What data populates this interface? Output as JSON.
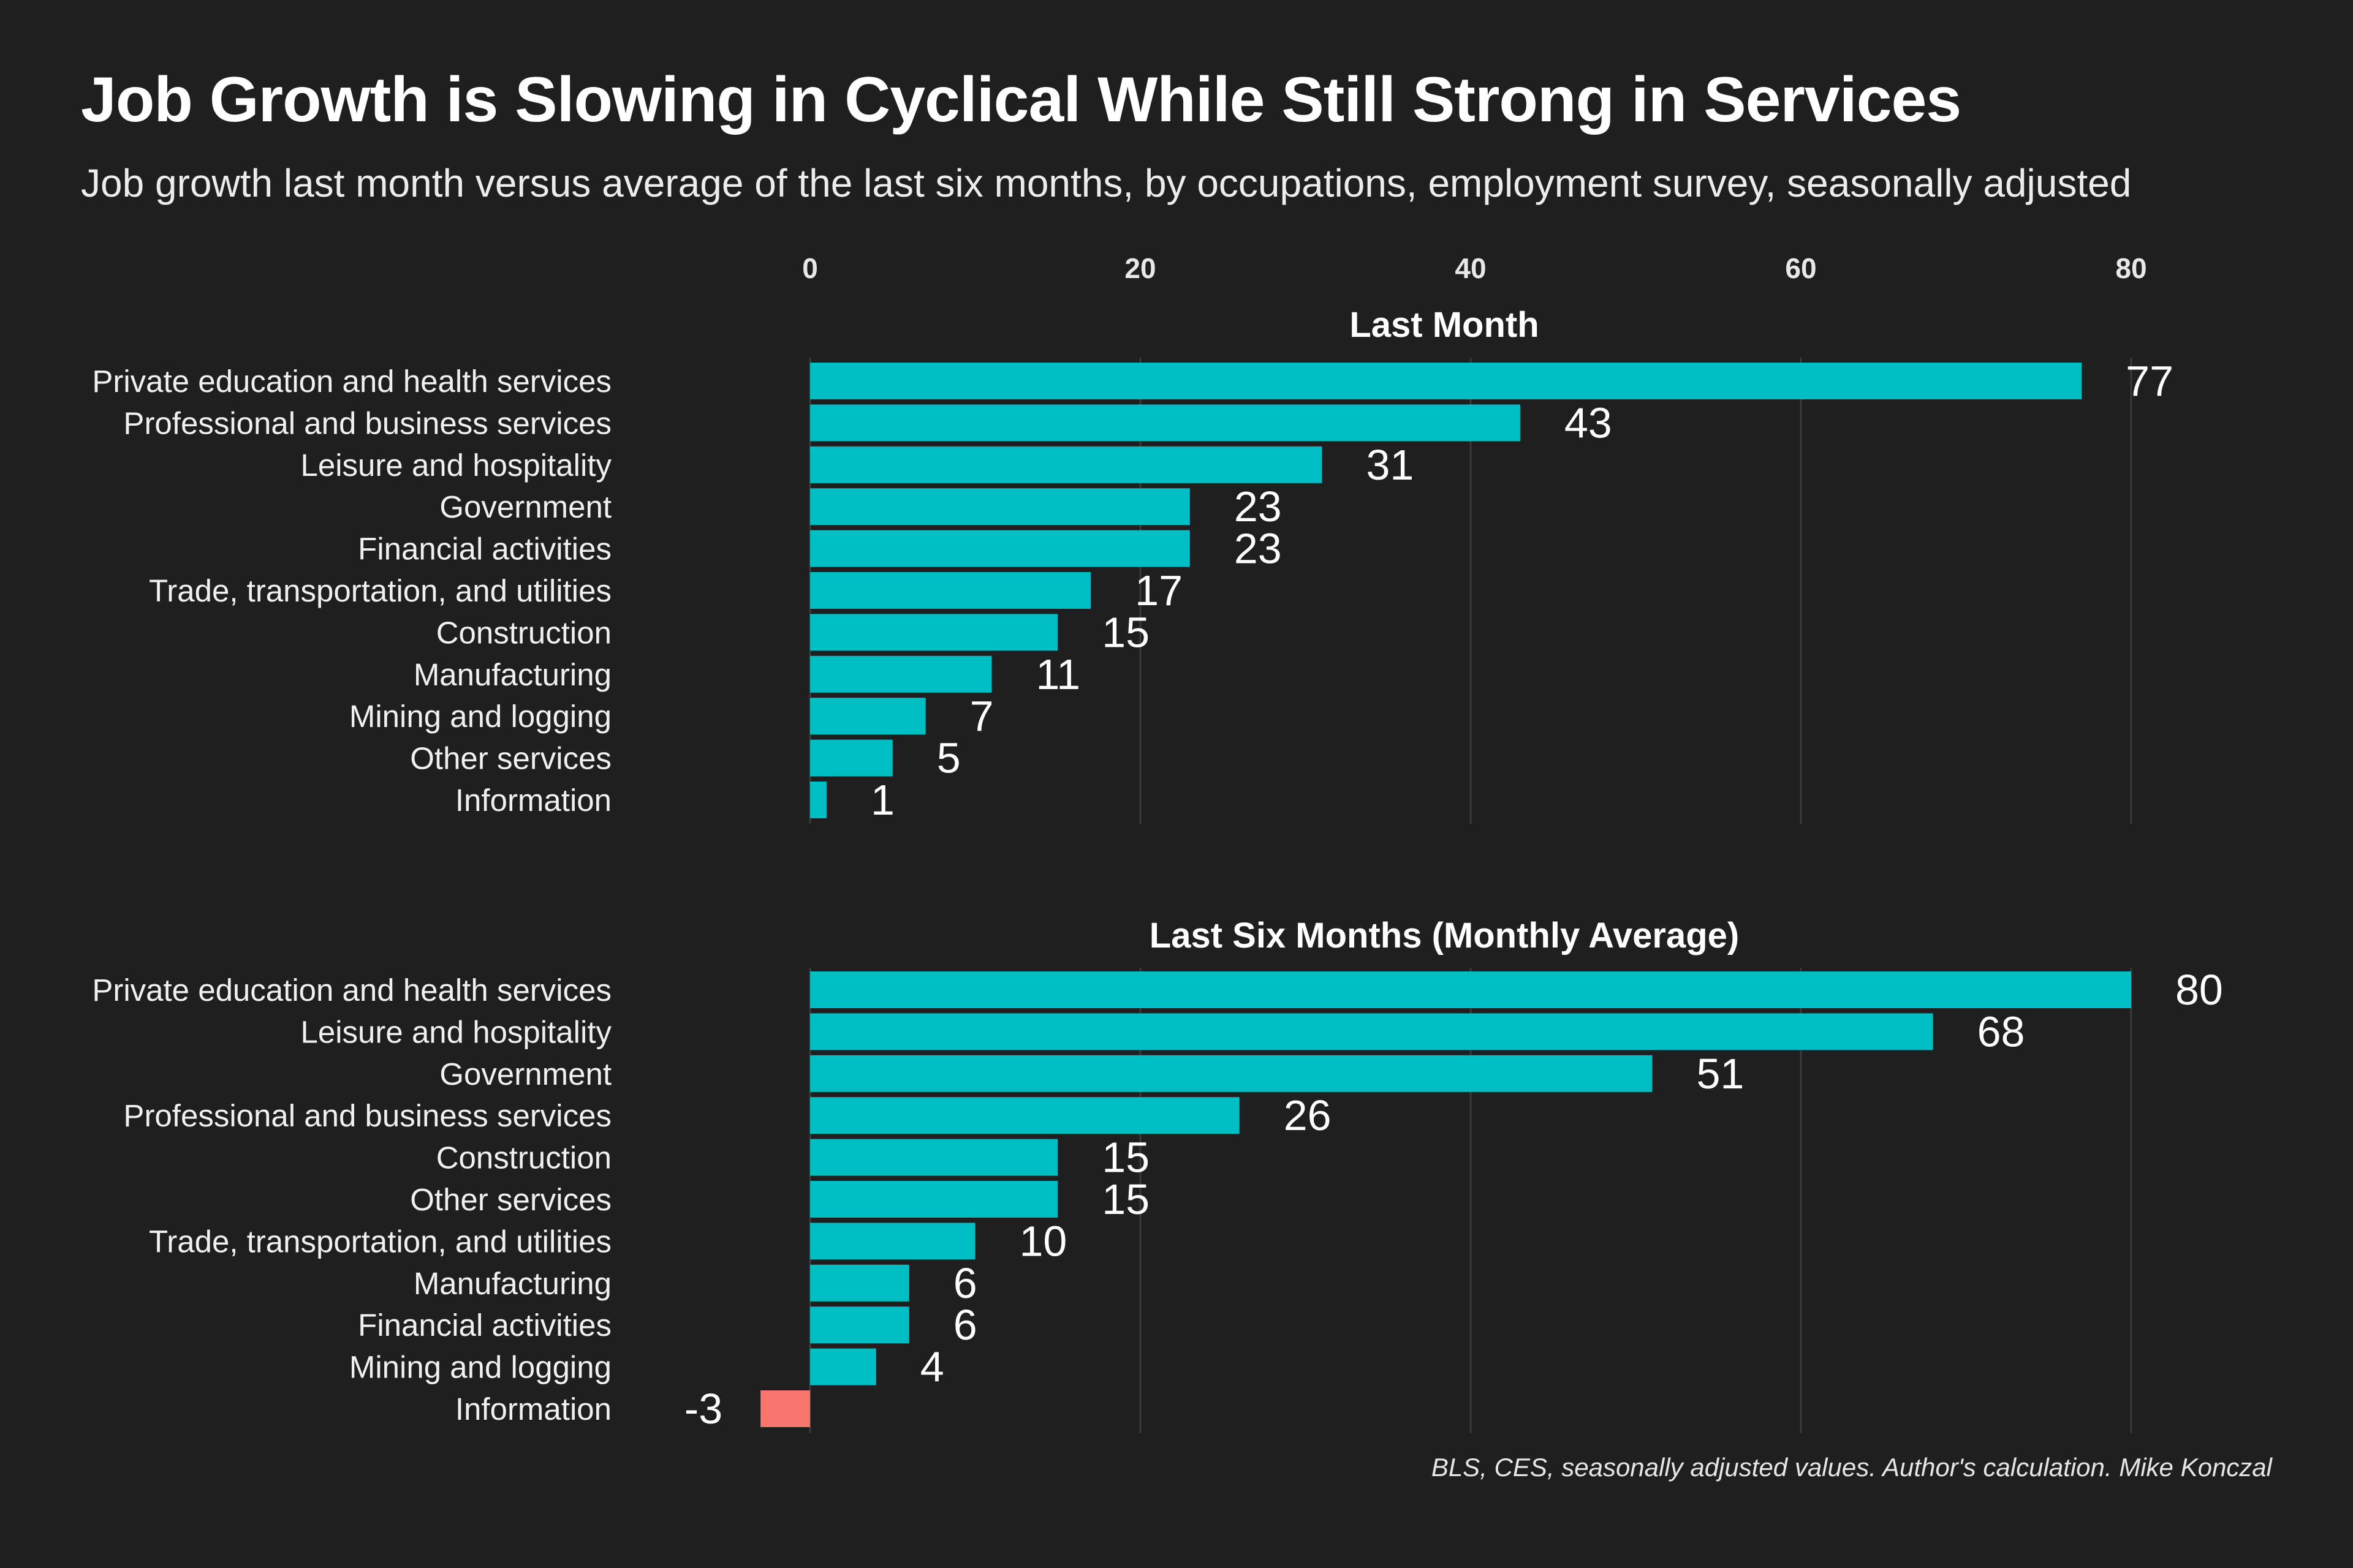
{
  "header": {
    "title": "Job Growth is Slowing in Cyclical While Still Strong in Services",
    "subtitle": "Job growth last month versus average of the last six months, by occupations, employment survey, seasonally adjusted"
  },
  "footer": {
    "source": "BLS, CES, seasonally adjusted values. Author's calculation. Mike Konczal"
  },
  "colors": {
    "background": "#1f1f1f",
    "positive": "#00bfc4",
    "negative": "#f8766d",
    "grid": "#3a3a3a",
    "text": "#ffffff"
  },
  "chart_data": {
    "type": "bar",
    "orientation": "horizontal",
    "x_ticks": [
      0,
      20,
      40,
      60,
      80
    ],
    "xlim": [
      -3.5,
      82
    ],
    "grid": true,
    "panels": [
      {
        "title": "Last Month",
        "categories": [
          "Private education and health services",
          "Professional and business services",
          "Leisure and hospitality",
          "Government",
          "Financial activities",
          "Trade, transportation, and utilities",
          "Construction",
          "Manufacturing",
          "Mining and logging",
          "Other services",
          "Information"
        ],
        "values": [
          77,
          43,
          31,
          23,
          23,
          17,
          15,
          11,
          7,
          5,
          1
        ]
      },
      {
        "title": "Last Six Months (Monthly Average)",
        "categories": [
          "Private education and health services",
          "Leisure and hospitality",
          "Government",
          "Professional and business services",
          "Construction",
          "Other services",
          "Trade, transportation, and utilities",
          "Manufacturing",
          "Financial activities",
          "Mining and logging",
          "Information"
        ],
        "values": [
          80,
          68,
          51,
          26,
          15,
          15,
          10,
          6,
          6,
          4,
          -3
        ]
      }
    ]
  }
}
